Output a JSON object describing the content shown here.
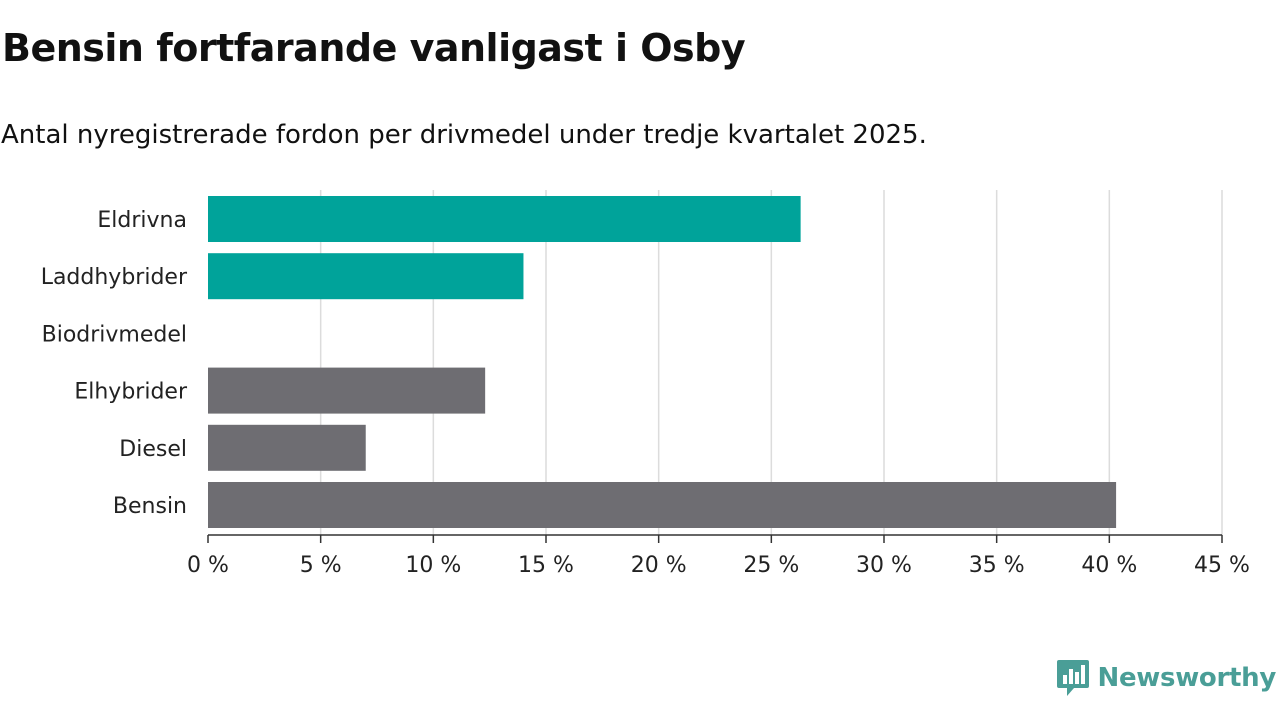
{
  "chart_data": {
    "type": "bar",
    "orientation": "horizontal",
    "title": "Bensin fortfarande vanligast i Osby",
    "subtitle": "Antal nyregistrerade fordon per drivmedel under tredje kvartalet 2025.",
    "xlabel": "",
    "ylabel": "",
    "xlim": [
      0,
      45
    ],
    "x_ticks": [
      0,
      5,
      10,
      15,
      20,
      25,
      30,
      35,
      40,
      45
    ],
    "tick_suffix": " %",
    "grid": true,
    "categories": [
      "Eldrivna",
      "Laddhybrider",
      "Biodrivmedel",
      "Elhybrider",
      "Diesel",
      "Bensin"
    ],
    "values": [
      26.3,
      14.0,
      0,
      12.3,
      7.0,
      40.3
    ],
    "bar_colors": [
      "#00a39a",
      "#00a39a",
      "#00a39a",
      "#6e6d72",
      "#6e6d72",
      "#6e6d72"
    ]
  },
  "brand": {
    "name": "Newsworthy",
    "color": "#4a9e97"
  }
}
